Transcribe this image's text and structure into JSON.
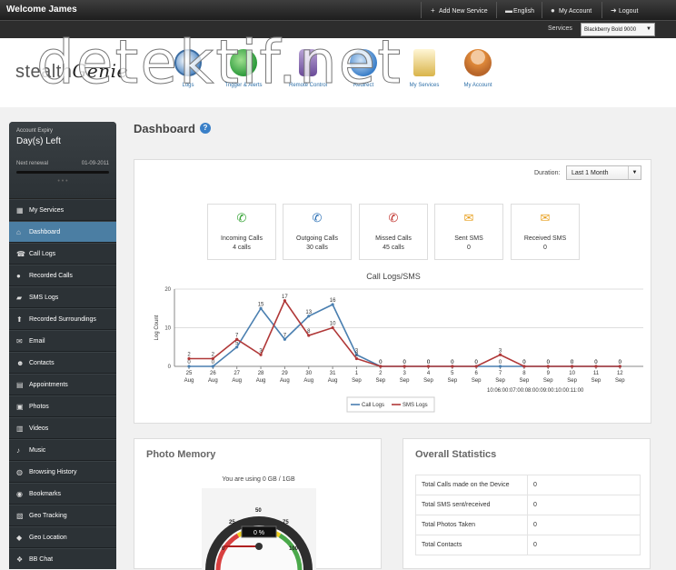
{
  "topbar": {
    "welcome": "Welcome James",
    "links": [
      {
        "label": "Add New Service",
        "icon": "plus-icon"
      },
      {
        "label": "English",
        "icon": "flag-icon"
      },
      {
        "label": "My Account",
        "icon": "user-icon"
      },
      {
        "label": "Logout",
        "icon": "logout-icon"
      }
    ]
  },
  "services": {
    "label": "Services",
    "selected": "Blackberry Bold 9000"
  },
  "banner": {
    "logo_prefix": "stealth",
    "logo_suffix": "Genie",
    "watermark": "detektif.net",
    "nav": [
      {
        "label": "Logs",
        "icon": "clock-icon",
        "color": "#5a8fc8"
      },
      {
        "label": "Trigger & Alerts",
        "icon": "globe-alert-icon",
        "color": "#3caa4a"
      },
      {
        "label": "Remote Control",
        "icon": "phone-signal-icon",
        "color": "#8a6bb0"
      },
      {
        "label": "Redirect",
        "icon": "redirect-mail-icon",
        "color": "#3a7ec8"
      },
      {
        "label": "My Services",
        "icon": "document-icon",
        "color": "#d9b44a"
      },
      {
        "label": "My Account",
        "icon": "user-icon",
        "color": "#e08a3a"
      }
    ]
  },
  "sidebar": {
    "account_expiry_label": "Account Expiry",
    "days_left": "Day(s) Left",
    "next_renewal_label": "Next renewal",
    "next_renewal_date": "01-09-2011",
    "items": [
      {
        "label": "My Services",
        "icon": "grid-icon",
        "active": false
      },
      {
        "label": "Dashboard",
        "icon": "home-icon",
        "active": true
      },
      {
        "label": "Call Logs",
        "icon": "phone-icon",
        "active": false
      },
      {
        "label": "Recorded Calls",
        "icon": "record-icon",
        "active": false
      },
      {
        "label": "SMS Logs",
        "icon": "chat-icon",
        "active": false
      },
      {
        "label": "Recorded Surroundings",
        "icon": "upload-icon",
        "active": false
      },
      {
        "label": "Email",
        "icon": "mail-icon",
        "active": false
      },
      {
        "label": "Contacts",
        "icon": "contact-icon",
        "active": false
      },
      {
        "label": "Appointments",
        "icon": "calendar-icon",
        "active": false
      },
      {
        "label": "Photos",
        "icon": "photo-icon",
        "active": false
      },
      {
        "label": "Videos",
        "icon": "film-icon",
        "active": false
      },
      {
        "label": "Music",
        "icon": "music-icon",
        "active": false
      },
      {
        "label": "Browsing History",
        "icon": "globe-icon",
        "active": false
      },
      {
        "label": "Bookmarks",
        "icon": "bookmark-icon",
        "active": false
      },
      {
        "label": "Geo Tracking",
        "icon": "map-icon",
        "active": false
      },
      {
        "label": "Geo Location",
        "icon": "pin-icon",
        "active": false
      },
      {
        "label": "BB Chat",
        "icon": "bbchat-icon",
        "active": false
      }
    ]
  },
  "main": {
    "title": "Dashboard",
    "duration_label": "Duration:",
    "duration_value": "Last 1 Month",
    "stats": [
      {
        "label": "Incoming Calls",
        "value": "4 calls",
        "icon": "incoming-call-icon",
        "color": "#2ea02e"
      },
      {
        "label": "Outgoing Calls",
        "value": "30 calls",
        "icon": "outgoing-call-icon",
        "color": "#2a6fb5"
      },
      {
        "label": "Missed Calls",
        "value": "45 calls",
        "icon": "missed-call-icon",
        "color": "#c0302a"
      },
      {
        "label": "Sent SMS",
        "value": "0",
        "icon": "sent-sms-icon",
        "color": "#e8a020"
      },
      {
        "label": "Received SMS",
        "value": "0",
        "icon": "received-sms-icon",
        "color": "#e8a020"
      }
    ]
  },
  "chart_data": {
    "type": "line",
    "title": "Call Logs/SMS",
    "ylabel": "Log Count",
    "xlabel": "",
    "ylim": [
      0,
      20
    ],
    "yticks": [
      0,
      10,
      20
    ],
    "categories": [
      "25 Aug",
      "26 Aug",
      "27 Aug",
      "28 Aug",
      "29 Aug",
      "30 Aug",
      "31 Aug",
      "1 Sep",
      "2 Sep",
      "3 Sep",
      "4 Sep",
      "5 Sep",
      "6 Sep",
      "7 Sep",
      "8 Sep",
      "9 Sep",
      "10 Sep",
      "11 Sep",
      "12 Sep"
    ],
    "series": [
      {
        "name": "Call Logs",
        "color": "#4a7fb0",
        "values": [
          0,
          0,
          5,
          15,
          7,
          13,
          16,
          3,
          0,
          0,
          0,
          0,
          0,
          0,
          0,
          0,
          0,
          0,
          0
        ]
      },
      {
        "name": "SMS Logs",
        "color": "#b03838",
        "values": [
          2,
          2,
          7,
          3,
          17,
          8,
          10,
          2,
          0,
          0,
          0,
          0,
          0,
          3,
          0,
          0,
          0,
          0,
          0
        ]
      }
    ],
    "x_axis_note": "10:06:00:07:00:08:00:09:00:10:00:11:00"
  },
  "photo_memory": {
    "title": "Photo Memory",
    "usage": "You are using 0 GB / 1GB",
    "gauge_value": "0 %",
    "gauge_ticks": [
      "0",
      "25",
      "50",
      "75",
      "100"
    ]
  },
  "overall_stats": {
    "title": "Overall Statistics",
    "rows": [
      {
        "label": "Total Calls made on the Device",
        "value": "0"
      },
      {
        "label": "Total SMS sent/received",
        "value": "0"
      },
      {
        "label": "Total Photos Taken",
        "value": "0"
      },
      {
        "label": "Total Contacts",
        "value": "0"
      }
    ]
  }
}
